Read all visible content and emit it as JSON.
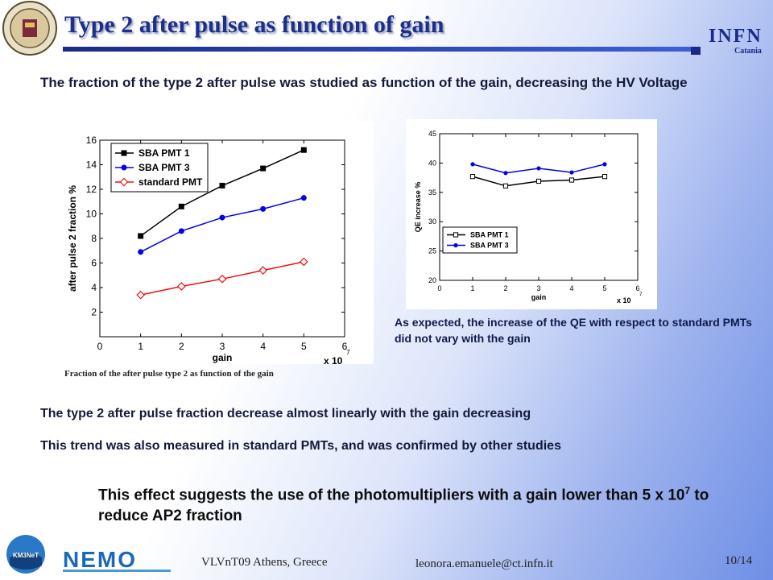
{
  "slide": {
    "title": "Type 2 after pulse as function of gain",
    "intro": "The fraction of the type 2 after pulse was studied as function of the gain, decreasing the HV Voltage",
    "caption1": "Fraction of the after pulse type 2 as function of the gain",
    "note": "As expected, the increase of the QE with respect to standard PMTs did not vary with the gain",
    "line2": "The type 2 after pulse fraction decrease almost linearly with the gain decreasing",
    "line3": "This trend was also measured in standard PMTs, and was confirmed by other studies",
    "conclusion_a": "This effect suggests the use of the photomultipliers with a gain lower than 5 x 10",
    "conclusion_exp": "7",
    "conclusion_b": " to reduce AP2 fraction"
  },
  "logos": {
    "infn": "INFN",
    "infn_sub": "Catania",
    "km3": "KM3NeT",
    "nemo": "NEMO"
  },
  "footer": {
    "conference": "VLVnT09 Athens, Greece",
    "email": "leonora.emanuele@ct.infn.it",
    "page": "10/14"
  },
  "colors": {
    "title": "#1c2f8c",
    "series_black": "#000000",
    "series_blue": "#0000ee",
    "series_red": "#ee1111"
  },
  "chart_data": [
    {
      "type": "line",
      "xlabel": "gain",
      "ylabel": "after pulse 2 fraction %",
      "x_multiplier": "x 10",
      "x_multiplier_exp": "7",
      "xlim": [
        0,
        6
      ],
      "ylim": [
        0,
        16
      ],
      "xticks": [
        0,
        1,
        2,
        3,
        4,
        5,
        6
      ],
      "yticks": [
        2,
        4,
        6,
        8,
        10,
        12,
        14,
        16
      ],
      "grid": false,
      "legend_position": "top-left",
      "x": [
        1,
        2,
        3,
        4,
        5
      ],
      "series": [
        {
          "name": "SBA PMT 1",
          "values": [
            8.2,
            10.6,
            12.3,
            13.7,
            15.2
          ],
          "color": "#000000",
          "marker": "square"
        },
        {
          "name": "SBA PMT 3",
          "values": [
            6.9,
            8.6,
            9.7,
            10.4,
            11.3
          ],
          "color": "#0000ee",
          "marker": "circle"
        },
        {
          "name": "standard PMT",
          "values": [
            3.4,
            4.1,
            4.7,
            5.4,
            6.1
          ],
          "color": "#ee1111",
          "marker": "diamond"
        }
      ]
    },
    {
      "type": "line",
      "xlabel": "gain",
      "ylabel": "QE increase %",
      "x_multiplier": "x 10",
      "x_multiplier_exp": "7",
      "xlim": [
        0,
        6
      ],
      "ylim": [
        20,
        45
      ],
      "xticks": [
        0,
        1,
        2,
        3,
        4,
        5,
        6
      ],
      "yticks": [
        20,
        25,
        30,
        35,
        40,
        45
      ],
      "grid": false,
      "legend_position": "bottom-left",
      "x": [
        1,
        2,
        3,
        4,
        5
      ],
      "series": [
        {
          "name": "SBA PMT 1",
          "values": [
            37.7,
            36.1,
            36.9,
            37.1,
            37.7
          ],
          "color": "#000000",
          "marker": "open-square"
        },
        {
          "name": "SBA PMT 3",
          "values": [
            39.8,
            38.3,
            39.1,
            38.4,
            39.8
          ],
          "color": "#0000ee",
          "marker": "circle"
        }
      ]
    }
  ]
}
